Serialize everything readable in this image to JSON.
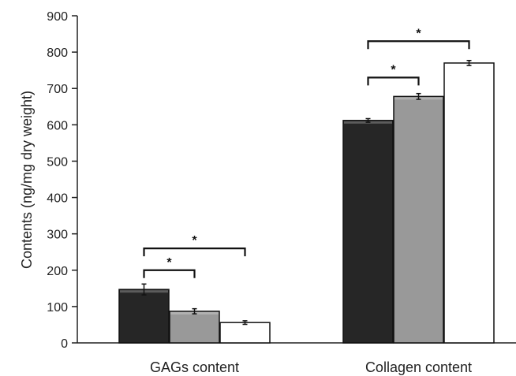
{
  "chart_data": {
    "type": "bar",
    "title": "",
    "xlabel": "",
    "ylabel": "Contents (ng/mg dry weight)",
    "ylim": [
      0,
      900
    ],
    "yticks": [
      0,
      100,
      200,
      300,
      400,
      500,
      600,
      700,
      800,
      900
    ],
    "grid": false,
    "legend": "none",
    "categories": [
      "GAGs content",
      "Collagen content"
    ],
    "series": [
      {
        "color": "#262626",
        "values": [
          147,
          612
        ],
        "errors": [
          15,
          5
        ]
      },
      {
        "color": "#999999",
        "values": [
          87,
          678
        ],
        "errors": [
          7,
          8
        ]
      },
      {
        "color": "#ffffff",
        "values": [
          56,
          770
        ],
        "errors": [
          5,
          7
        ]
      }
    ],
    "significance": [
      {
        "category": 0,
        "from_series": 0,
        "to_series": 1,
        "y": 200,
        "label": "*"
      },
      {
        "category": 0,
        "from_series": 0,
        "to_series": 2,
        "y": 260,
        "label": "*"
      },
      {
        "category": 1,
        "from_series": 0,
        "to_series": 1,
        "y": 730,
        "label": "*"
      },
      {
        "category": 1,
        "from_series": 0,
        "to_series": 2,
        "y": 830,
        "label": "*"
      }
    ]
  }
}
